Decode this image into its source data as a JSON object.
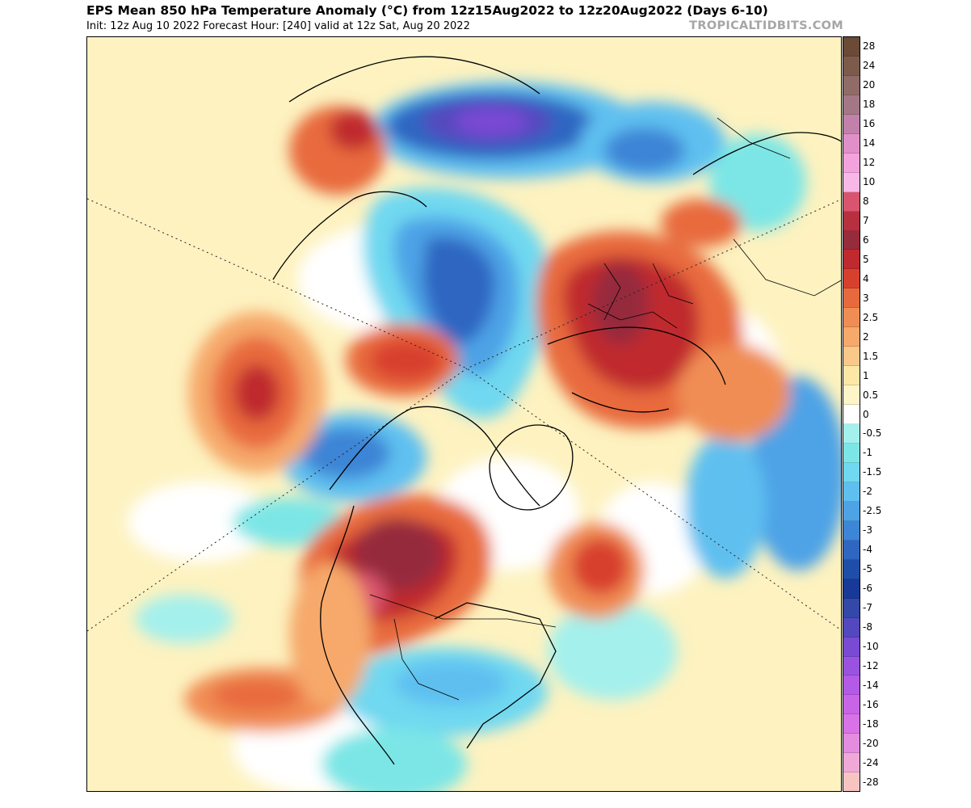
{
  "header": {
    "title": "EPS Mean 850 hPa Temperature Anomaly (°C) from 12z15Aug2022 to 12z20Aug2022 (Days 6-10)",
    "subtitle": "Init: 12z Aug 10 2022   Forecast Hour: [240]   valid at 12z Sat, Aug 20 2022",
    "brand": "TROPICALTIDBITS.COM"
  },
  "colorbar": {
    "labels": [
      "28",
      "24",
      "20",
      "18",
      "16",
      "14",
      "12",
      "10",
      "8",
      "7",
      "6",
      "5",
      "4",
      "3",
      "2.5",
      "2",
      "1.5",
      "1",
      "0.5",
      "0",
      "-0.5",
      "-1",
      "-1.5",
      "-2",
      "-2.5",
      "-3",
      "-4",
      "-5",
      "-6",
      "-7",
      "-8",
      "-10",
      "-12",
      "-14",
      "-16",
      "-18",
      "-20",
      "-24",
      "-28"
    ],
    "colors": [
      "#6b4a36",
      "#7c5b4d",
      "#906b68",
      "#a47787",
      "#c181aa",
      "#e08fc9",
      "#f3a2dd",
      "#f7b7e7",
      "#d9546e",
      "#b8303f",
      "#962b3c",
      "#c0292e",
      "#d8402e",
      "#e86a3c",
      "#f08d55",
      "#f6a96b",
      "#fac888",
      "#fde7a6",
      "#fdf5c8",
      "#ffffff",
      "#a4f0ec",
      "#7ce6e6",
      "#70d8f0",
      "#5fc0f0",
      "#4ea3e6",
      "#3d85d6",
      "#2f66c2",
      "#1f4eaa",
      "#18399a",
      "#3348a8",
      "#5448bf",
      "#7a4ad4",
      "#9a52e0",
      "#b35ae6",
      "#c864e6",
      "#d872e6",
      "#e38ce0",
      "#efa8d8",
      "#f8c4c2"
    ]
  },
  "map": {
    "projection": "north-polar-stereographic",
    "anomalies": [
      {
        "region": "Western Canada / Northwestern US",
        "sign": "warm",
        "peak_c": 8
      },
      {
        "region": "Eastern Europe / Western Russia",
        "sign": "warm",
        "peak_c": 6
      },
      {
        "region": "Northeast Pacific",
        "sign": "warm",
        "peak_c": 6
      },
      {
        "region": "Alaska / Bering Strait",
        "sign": "warm",
        "peak_c": 5
      },
      {
        "region": "North Atlantic (south of Greenland)",
        "sign": "warm",
        "peak_c": 5
      },
      {
        "region": "Central Siberia",
        "sign": "cold",
        "peak_c": -8
      },
      {
        "region": "Arctic Ocean",
        "sign": "cold",
        "peak_c": -4
      },
      {
        "region": "Gulf of Alaska",
        "sign": "cold",
        "peak_c": -3
      },
      {
        "region": "Central and Eastern US",
        "sign": "cold",
        "peak_c": -2.5
      },
      {
        "region": "Western Africa",
        "sign": "cold",
        "peak_c": -2.5
      }
    ]
  }
}
